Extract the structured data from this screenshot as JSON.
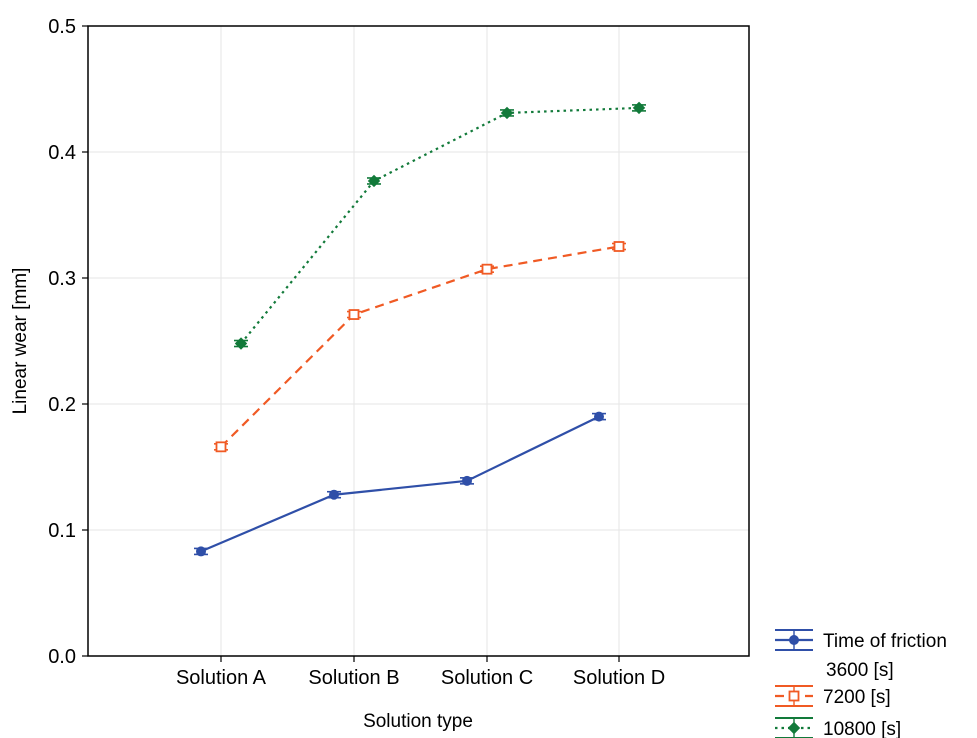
{
  "chart_data": {
    "type": "line",
    "title": "",
    "xlabel": "Solution type",
    "ylabel": "Linear wear  [mm]",
    "categories": [
      "Solution A",
      "Solution B",
      "Solution C",
      "Solution D"
    ],
    "ylim": [
      0.0,
      0.5
    ],
    "yticks": [
      "0.0",
      "0.1",
      "0.2",
      "0.3",
      "0.4",
      "0.5"
    ],
    "grid": true,
    "legend_position": "bottom-right",
    "legend_title": "Time of friction",
    "series": [
      {
        "name": "3600 [s]",
        "values": [
          0.083,
          0.128,
          0.139,
          0.19
        ],
        "color": "#2f4fa8",
        "line": "solid",
        "marker": "circle"
      },
      {
        "name": "7200 [s]",
        "values": [
          0.166,
          0.271,
          0.307,
          0.325
        ],
        "color": "#f05a24",
        "line": "dashed",
        "marker": "square"
      },
      {
        "name": "10800 [s]",
        "values": [
          0.248,
          0.377,
          0.431,
          0.435
        ],
        "color": "#127a3a",
        "line": "dotted",
        "marker": "diamond"
      }
    ]
  }
}
